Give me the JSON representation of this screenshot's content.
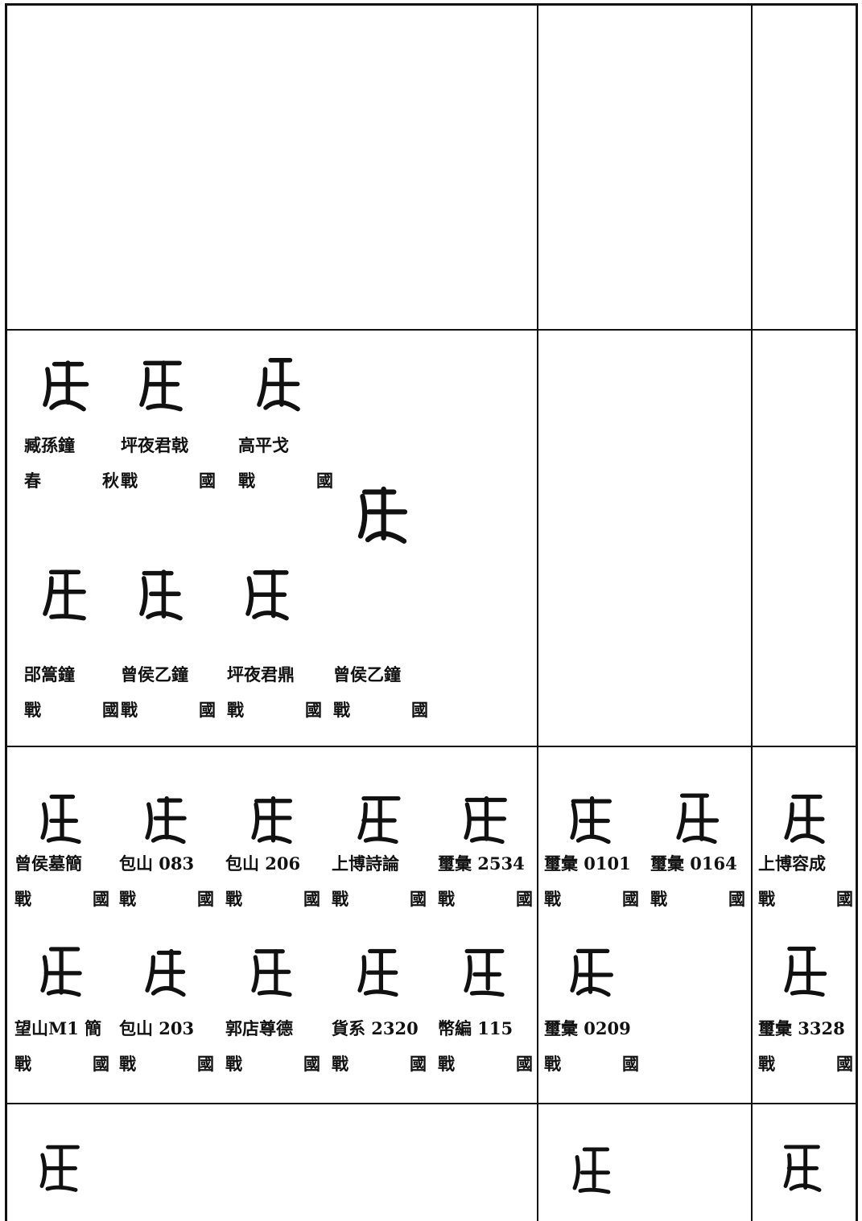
{
  "sections": [
    {
      "top": [
        {
          "source": "臧孫鐘",
          "period": "春秋"
        },
        {
          "source": "坪夜君戟",
          "period": "戰國"
        },
        {
          "source": "高平戈",
          "period": "戰國"
        }
      ],
      "bottom": [
        {
          "source": "郘篙鐘",
          "period": "戰國"
        },
        {
          "source": "曾侯乙鐘",
          "period": "戰國"
        },
        {
          "source": "坪夜君鼎",
          "period": "戰國"
        },
        {
          "source": "曾侯乙鐘",
          "period": "戰國"
        }
      ]
    },
    {
      "top": [
        {
          "source": "曾侯墓簡",
          "period": "戰國"
        },
        {
          "source": "包山 083",
          "period": "戰國"
        },
        {
          "source": "包山 206",
          "period": "戰國"
        },
        {
          "source": "上博詩論",
          "period": "戰國"
        },
        {
          "source": "璽彙 2534",
          "period": "戰國"
        },
        {
          "source": "璽彙 0101",
          "period": "戰國"
        },
        {
          "source": "璽彙 0164",
          "period": "戰國"
        },
        {
          "source": "上博容成",
          "period": "戰國"
        }
      ],
      "bottom": [
        {
          "source": "望山M1 簡",
          "period": "戰國"
        },
        {
          "source": "包山 203",
          "period": "戰國"
        },
        {
          "source": "郭店尊德",
          "period": "戰國"
        },
        {
          "source": "貨系 2320",
          "period": "戰國"
        },
        {
          "source": "幣編 115",
          "period": "戰國"
        },
        {
          "source": "璽彙 0209",
          "period": "戰國"
        },
        {
          "source": "璽彙 3328",
          "period": "戰國"
        }
      ]
    }
  ]
}
